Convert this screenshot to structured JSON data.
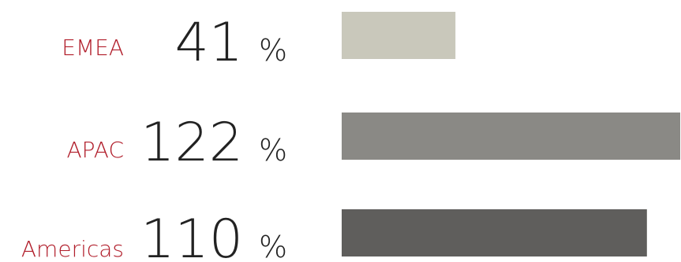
{
  "chart_data": {
    "type": "bar",
    "orientation": "horizontal",
    "categories": [
      "EMEA",
      "APAC",
      "Americas"
    ],
    "values": [
      41,
      122,
      110
    ],
    "unit": "%",
    "category_label_color": "#b11e2b",
    "value_label_color": "#222222",
    "bar_colors": [
      "#c9c8bb",
      "#8a8985",
      "#5f5e5c"
    ],
    "xlim": [
      0,
      122
    ],
    "grid": false,
    "legend": "none"
  }
}
